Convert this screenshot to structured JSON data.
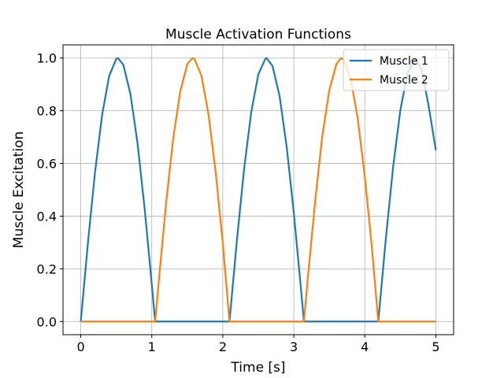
{
  "chart_data": {
    "type": "line",
    "title": "Muscle Activation Functions",
    "xlabel": "Time [s]",
    "ylabel": "Muscle Excitation",
    "xlim": [
      -0.25,
      5.25
    ],
    "ylim": [
      -0.05,
      1.05
    ],
    "xticks": [
      0,
      1,
      2,
      3,
      4,
      5
    ],
    "xtick_labels": [
      "0",
      "1",
      "2",
      "3",
      "4",
      "5"
    ],
    "yticks": [
      0.0,
      0.2,
      0.4,
      0.6,
      0.8,
      1.0
    ],
    "ytick_labels": [
      "0.0",
      "0.2",
      "0.4",
      "0.6",
      "0.8",
      "1.0"
    ],
    "grid": true,
    "legend": "upper right",
    "series": [
      {
        "name": "Muscle 1",
        "color": "#1f77b4",
        "x": [
          0,
          0.1,
          0.2,
          0.3,
          0.4,
          0.5,
          0.524,
          0.6,
          0.7,
          0.8,
          0.9,
          1.0,
          1.047,
          1.1,
          1.5,
          2.0,
          2.094,
          2.2,
          2.3,
          2.4,
          2.5,
          2.6,
          2.618,
          2.7,
          2.8,
          2.9,
          3.0,
          3.1,
          3.142,
          3.2,
          3.6,
          4.0,
          4.189,
          4.3,
          4.4,
          4.5,
          4.6,
          4.712,
          4.8,
          4.9,
          5.0
        ],
        "y": [
          0.0,
          0.296,
          0.565,
          0.783,
          0.932,
          0.997,
          1.0,
          0.974,
          0.863,
          0.675,
          0.427,
          0.141,
          0.0,
          0.0,
          0.0,
          0.0,
          0.0,
          0.312,
          0.579,
          0.794,
          0.938,
          0.998,
          1.0,
          0.97,
          0.855,
          0.662,
          0.412,
          0.126,
          0.0,
          0.0,
          0.0,
          0.0,
          0.0,
          0.327,
          0.591,
          0.802,
          0.942,
          1.0,
          0.955,
          0.816,
          0.65
        ]
      },
      {
        "name": "Muscle 2",
        "color": "#ff7f0e",
        "x": [
          0,
          0.5,
          1.0,
          1.047,
          1.1,
          1.2,
          1.3,
          1.4,
          1.5,
          1.571,
          1.6,
          1.7,
          1.8,
          1.9,
          2.0,
          2.094,
          2.2,
          2.6,
          3.0,
          3.142,
          3.2,
          3.3,
          3.4,
          3.5,
          3.6,
          3.665,
          3.7,
          3.8,
          3.9,
          4.0,
          4.1,
          4.189,
          4.3,
          4.6,
          5.0
        ],
        "y": [
          0.0,
          0.0,
          0.0,
          0.0,
          0.158,
          0.445,
          0.692,
          0.873,
          0.977,
          1.0,
          0.997,
          0.932,
          0.783,
          0.565,
          0.296,
          0.0,
          0.0,
          0.0,
          0.0,
          0.0,
          0.174,
          0.456,
          0.703,
          0.879,
          0.978,
          1.0,
          0.994,
          0.924,
          0.77,
          0.549,
          0.279,
          0.0,
          0.0,
          0.0,
          0.0
        ]
      }
    ]
  }
}
